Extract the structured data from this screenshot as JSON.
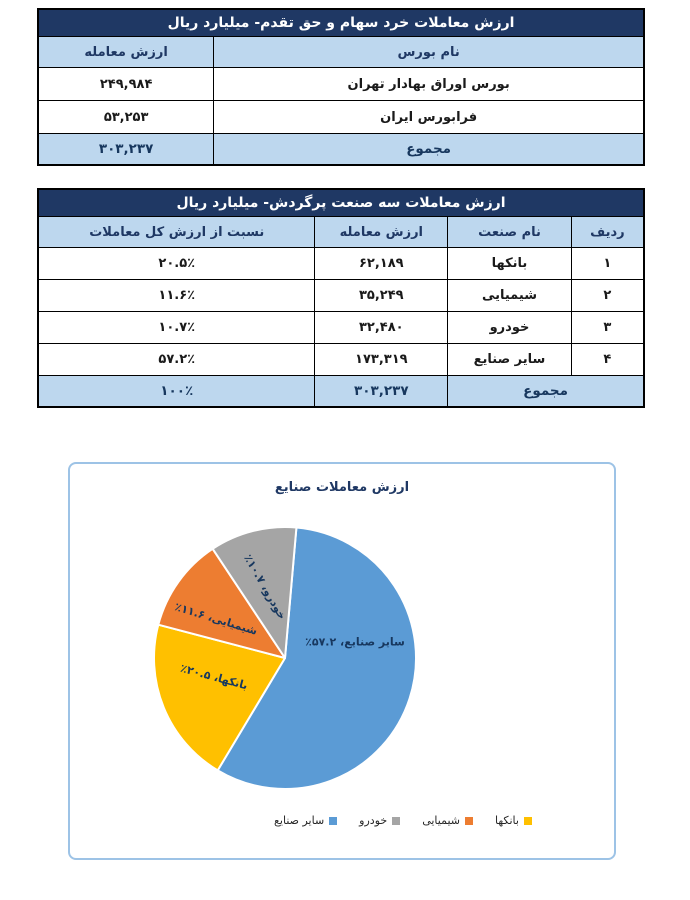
{
  "colors": {
    "title_bar_bg": "#1F3864",
    "title_bar_text": "#FFFFFF",
    "header_bg": "#BDD7EE",
    "header_text": "#1F3864",
    "total_bg": "#BDD7EE",
    "border": "#000000",
    "panel_border": "#9DC3E6",
    "chart_text": "#17375E"
  },
  "table1": {
    "title": "ارزش معاملات خرد سهام و حق تقدم- میلیارد ریال",
    "columns": [
      "نام بورس",
      "ارزش معامله"
    ],
    "rows": [
      {
        "name": "بورس اوراق بهادار تهران",
        "value": "۲۴۹,۹۸۴"
      },
      {
        "name": "فرابورس ایران",
        "value": "۵۳,۲۵۳"
      }
    ],
    "total": {
      "label": "مجموع",
      "value": "۳۰۳,۲۳۷"
    }
  },
  "table2": {
    "title": "ارزش معاملات سه صنعت پرگردش- میلیارد ریال",
    "columns": [
      "ردیف",
      "نام صنعت",
      "ارزش معامله",
      "نسبت از ارزش کل معاملات"
    ],
    "rows": [
      {
        "index": "۱",
        "industry": "بانکها",
        "value": "۶۲,۱۸۹",
        "share": "۲۰.۵٪"
      },
      {
        "index": "۲",
        "industry": "شیمیایی",
        "value": "۳۵,۲۴۹",
        "share": "۱۱.۶٪"
      },
      {
        "index": "۳",
        "industry": "خودرو",
        "value": "۳۲,۴۸۰",
        "share": "۱۰.۷٪"
      },
      {
        "index": "۴",
        "industry": "سایر صنایع",
        "value": "۱۷۳,۳۱۹",
        "share": "۵۷.۲٪"
      }
    ],
    "total": {
      "label": "مجموع",
      "value": "۳۰۳,۲۳۷",
      "share": "۱۰۰٪"
    }
  },
  "chart_data": {
    "type": "pie",
    "title": "ارزش معاملات صنایع",
    "start_angle_deg": 5,
    "slices": [
      {
        "name": "سایر صنایع",
        "value": 57.2,
        "color": "#5B9BD5",
        "label": "سایر صنایع، ۵۷.۲٪",
        "label_offset": [
          70,
          -16
        ],
        "label_rotation": 0
      },
      {
        "name": "بانکها",
        "value": 20.5,
        "color": "#FFC000",
        "label": "بانکها، ۲۰.۵٪",
        "label_offset": [
          -71,
          19
        ],
        "label_rotation": 15
      },
      {
        "name": "شیمیایی",
        "value": 11.6,
        "color": "#ED7D31",
        "label": "شیمیایی، ۱۱.۶٪",
        "label_offset": [
          -69,
          -39
        ],
        "label_rotation": 17
      },
      {
        "name": "خودرو",
        "value": 10.7,
        "color": "#A5A5A5",
        "label": "خودرو، ۱۰.۷٪",
        "label_offset": [
          -20,
          -71
        ],
        "label_rotation": 60
      }
    ],
    "legend": [
      {
        "label": "بانکها",
        "color": "#FFC000"
      },
      {
        "label": "شیمیایی",
        "color": "#ED7D31"
      },
      {
        "label": "خودرو",
        "color": "#A5A5A5"
      },
      {
        "label": "سایر صنایع",
        "color": "#5B9BD5"
      }
    ],
    "legend_position": "bottom"
  }
}
